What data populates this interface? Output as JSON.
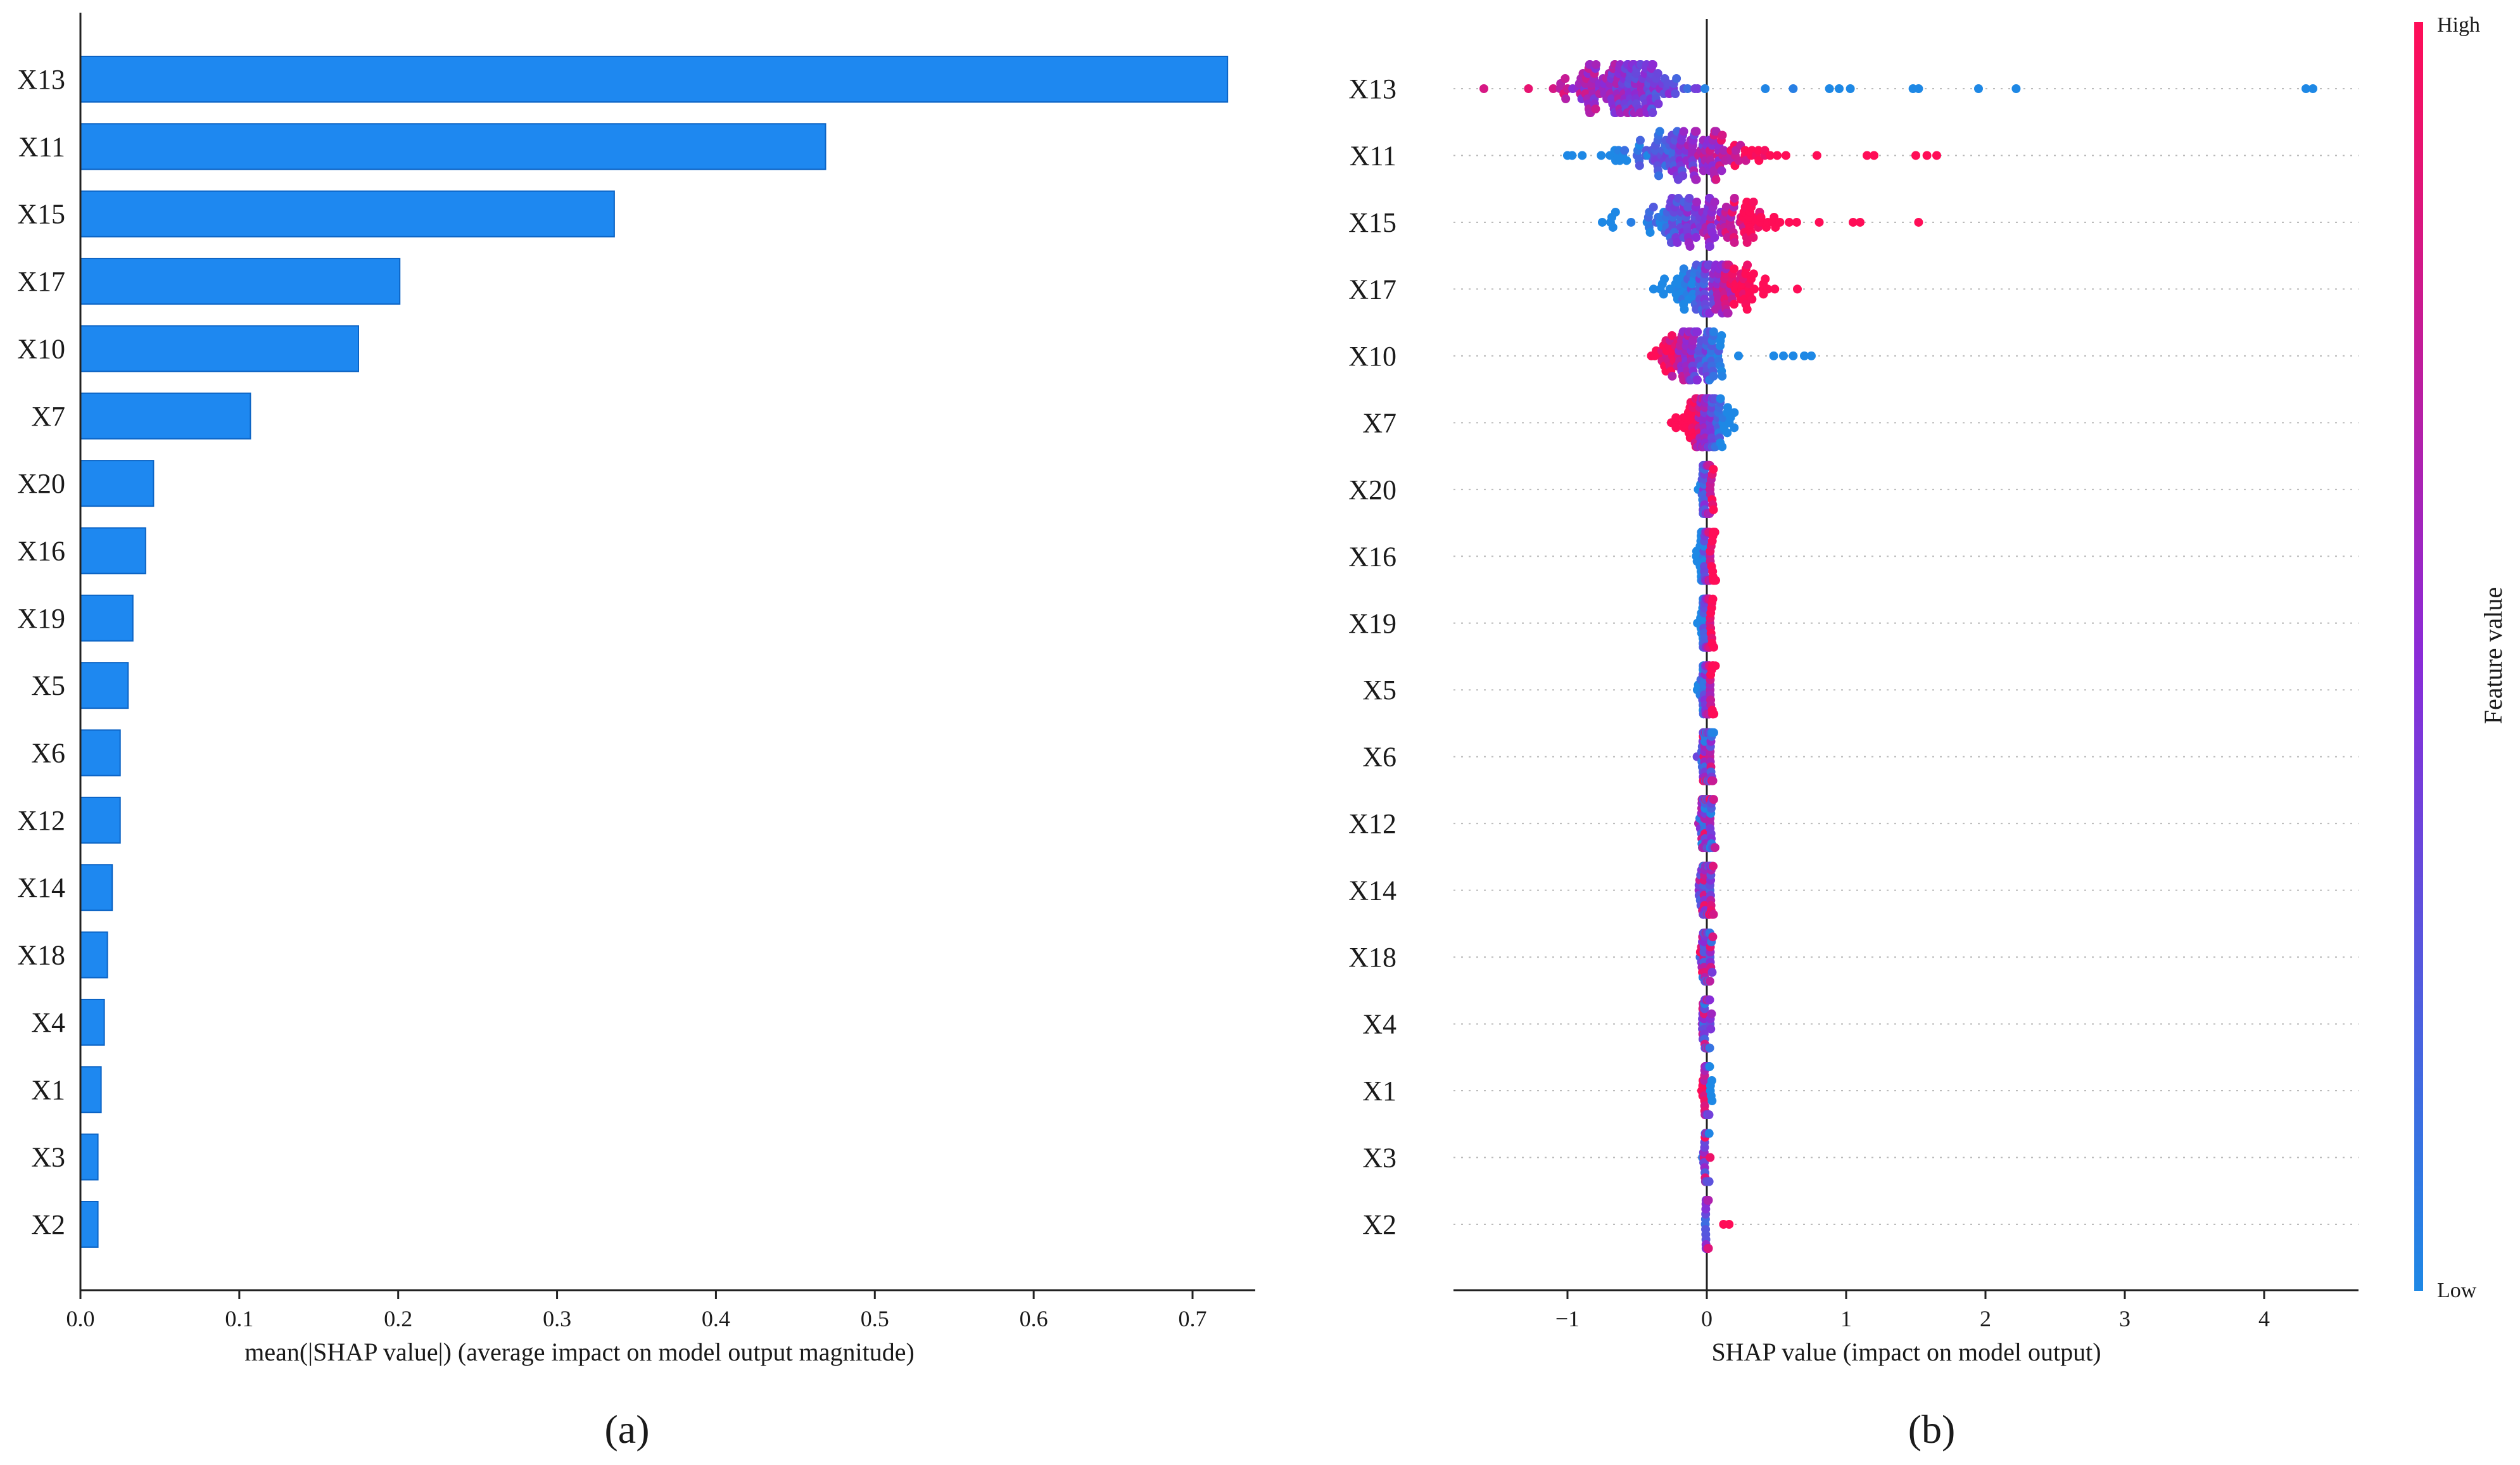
{
  "chart_data": [
    {
      "type": "bar",
      "orientation": "horizontal",
      "panel_label": "(a)",
      "xlabel": "mean(|SHAP value|) (average impact on model output magnitude)",
      "xlim": [
        0,
        0.76
      ],
      "xticks": [
        "0.0",
        "0.1",
        "0.2",
        "0.3",
        "0.4",
        "0.5",
        "0.6",
        "0.7"
      ],
      "categories": [
        "X13",
        "X11",
        "X15",
        "X17",
        "X10",
        "X7",
        "X20",
        "X16",
        "X19",
        "X5",
        "X6",
        "X12",
        "X14",
        "X18",
        "X4",
        "X1",
        "X3",
        "X2"
      ],
      "values": [
        0.722,
        0.469,
        0.336,
        0.201,
        0.175,
        0.107,
        0.046,
        0.041,
        0.033,
        0.03,
        0.025,
        0.025,
        0.02,
        0.017,
        0.015,
        0.013,
        0.011,
        0.011
      ],
      "bar_color": "#1e88f0",
      "grid": false
    },
    {
      "type": "scatter",
      "subtype": "beeswarm",
      "panel_label": "(b)",
      "xlabel": "SHAP value (impact on model output)",
      "xlim": [
        -1.85,
        4.6
      ],
      "xticks": [
        "−1",
        "0",
        "1",
        "2",
        "3",
        "4"
      ],
      "categories": [
        "X13",
        "X11",
        "X15",
        "X17",
        "X10",
        "X7",
        "X20",
        "X16",
        "X19",
        "X5",
        "X6",
        "X12",
        "X14",
        "X18",
        "X4",
        "X1",
        "X3",
        "X2"
      ],
      "colorbar": {
        "label": "Feature value",
        "high_label": "High",
        "low_label": "Low",
        "high_color": "#ff0d57",
        "low_color": "#1e88e5"
      },
      "distributions": [
        {
          "feature": "X13",
          "min": -1.6,
          "max": 4.4,
          "center": -0.6,
          "spread": 0.3,
          "density": 0.55,
          "high_side": "low",
          "count": 160,
          "outliers": [
            -1.6,
            -1.28,
            0.42,
            0.62,
            0.88,
            0.95,
            1.03,
            1.48,
            1.52,
            1.95,
            2.22,
            4.3,
            4.35
          ]
        },
        {
          "feature": "X11",
          "min": -1.0,
          "max": 1.65,
          "center": -0.1,
          "spread": 0.42,
          "density": 0.32,
          "high_side": "high",
          "count": 150,
          "outliers": [
            -1.0,
            1.15,
            1.2,
            1.5,
            1.58,
            1.65
          ]
        },
        {
          "feature": "X15",
          "min": -0.75,
          "max": 1.55,
          "center": -0.05,
          "spread": 0.42,
          "density": 0.32,
          "high_side": "high",
          "count": 150,
          "outliers": [
            -0.75,
            1.05,
            1.1,
            1.52
          ]
        },
        {
          "feature": "X17",
          "min": -0.5,
          "max": 0.7,
          "center": 0.05,
          "spread": 0.25,
          "density": 0.35,
          "high_side": "high",
          "count": 140,
          "outliers": [
            0.65
          ]
        },
        {
          "feature": "X10",
          "min": -0.45,
          "max": 0.78,
          "center": -0.1,
          "spread": 0.18,
          "density": 0.3,
          "high_side": "low",
          "count": 110,
          "outliers": [
            0.48,
            0.55,
            0.62,
            0.7,
            0.75
          ]
        },
        {
          "feature": "X7",
          "min": -0.32,
          "max": 0.34,
          "center": 0.0,
          "spread": 0.14,
          "density": 0.42,
          "high_side": "low",
          "count": 120,
          "outliers": []
        },
        {
          "feature": "X20",
          "min": -0.1,
          "max": 0.2,
          "center": 0.0,
          "spread": 0.03,
          "density": 0.3,
          "high_side": "high",
          "count": 70,
          "outliers": []
        },
        {
          "feature": "X16",
          "min": -0.08,
          "max": 0.12,
          "center": 0.0,
          "spread": 0.04,
          "density": 0.35,
          "high_side": "high",
          "count": 80,
          "outliers": []
        },
        {
          "feature": "X19",
          "min": -0.07,
          "max": 0.12,
          "center": 0.0,
          "spread": 0.035,
          "density": 0.33,
          "high_side": "high",
          "count": 75,
          "outliers": []
        },
        {
          "feature": "X5",
          "min": -0.08,
          "max": 0.16,
          "center": 0.0,
          "spread": 0.04,
          "density": 0.35,
          "high_side": "high",
          "count": 80,
          "outliers": []
        },
        {
          "feature": "X6",
          "min": -0.07,
          "max": 0.12,
          "center": 0.0,
          "spread": 0.035,
          "density": 0.32,
          "high_side": "mixed",
          "count": 75,
          "outliers": []
        },
        {
          "feature": "X12",
          "min": -0.08,
          "max": 0.13,
          "center": 0.0,
          "spread": 0.035,
          "density": 0.33,
          "high_side": "mixed",
          "count": 75,
          "outliers": []
        },
        {
          "feature": "X14",
          "min": -0.18,
          "max": 0.1,
          "center": 0.0,
          "spread": 0.035,
          "density": 0.33,
          "high_side": "mixed",
          "count": 75,
          "outliers": []
        },
        {
          "feature": "X18",
          "min": -0.08,
          "max": 0.1,
          "center": 0.0,
          "spread": 0.03,
          "density": 0.3,
          "high_side": "mixed",
          "count": 70,
          "outliers": []
        },
        {
          "feature": "X4",
          "min": -0.08,
          "max": 0.08,
          "center": 0.0,
          "spread": 0.025,
          "density": 0.3,
          "high_side": "mixed",
          "count": 65,
          "outliers": []
        },
        {
          "feature": "X1",
          "min": -0.06,
          "max": 0.1,
          "center": 0.0,
          "spread": 0.02,
          "density": 0.3,
          "high_side": "low",
          "count": 65,
          "outliers": []
        },
        {
          "feature": "X3",
          "min": -0.07,
          "max": 0.06,
          "center": 0.0,
          "spread": 0.018,
          "density": 0.28,
          "high_side": "mixed",
          "count": 60,
          "outliers": []
        },
        {
          "feature": "X2",
          "min": -0.02,
          "max": 0.17,
          "center": 0.0,
          "spread": 0.008,
          "density": 0.28,
          "high_side": "high",
          "count": 55,
          "outliers": [
            0.12,
            0.16
          ]
        }
      ],
      "grid": false
    }
  ]
}
